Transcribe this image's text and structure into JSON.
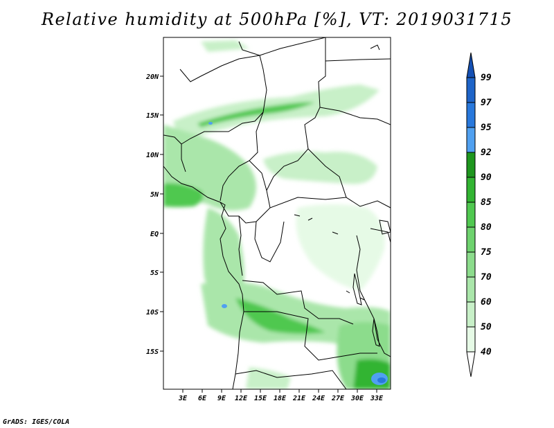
{
  "title": "Relative humidity at 500hPa [%], VT: 2019031715",
  "credit": "GrADS: IGES/COLA",
  "map": {
    "lat_labels": [
      "20N",
      "15N",
      "10N",
      "5N",
      "EQ",
      "5S",
      "10S",
      "15S"
    ],
    "lon_labels": [
      "3E",
      "6E",
      "9E",
      "12E",
      "15E",
      "18E",
      "21E",
      "24E",
      "27E",
      "30E",
      "33E"
    ]
  },
  "colorbar": {
    "levels": [
      "40",
      "50",
      "60",
      "70",
      "75",
      "80",
      "85",
      "90",
      "92",
      "95",
      "97",
      "99"
    ],
    "colors": [
      "#ffffff",
      "#e6fae6",
      "#c8f0c8",
      "#aae6aa",
      "#8cdc8c",
      "#6ed26e",
      "#50c850",
      "#32b432",
      "#1e961e",
      "#50a0f0",
      "#2878dc",
      "#1e64c8",
      "#1450b4"
    ]
  }
}
